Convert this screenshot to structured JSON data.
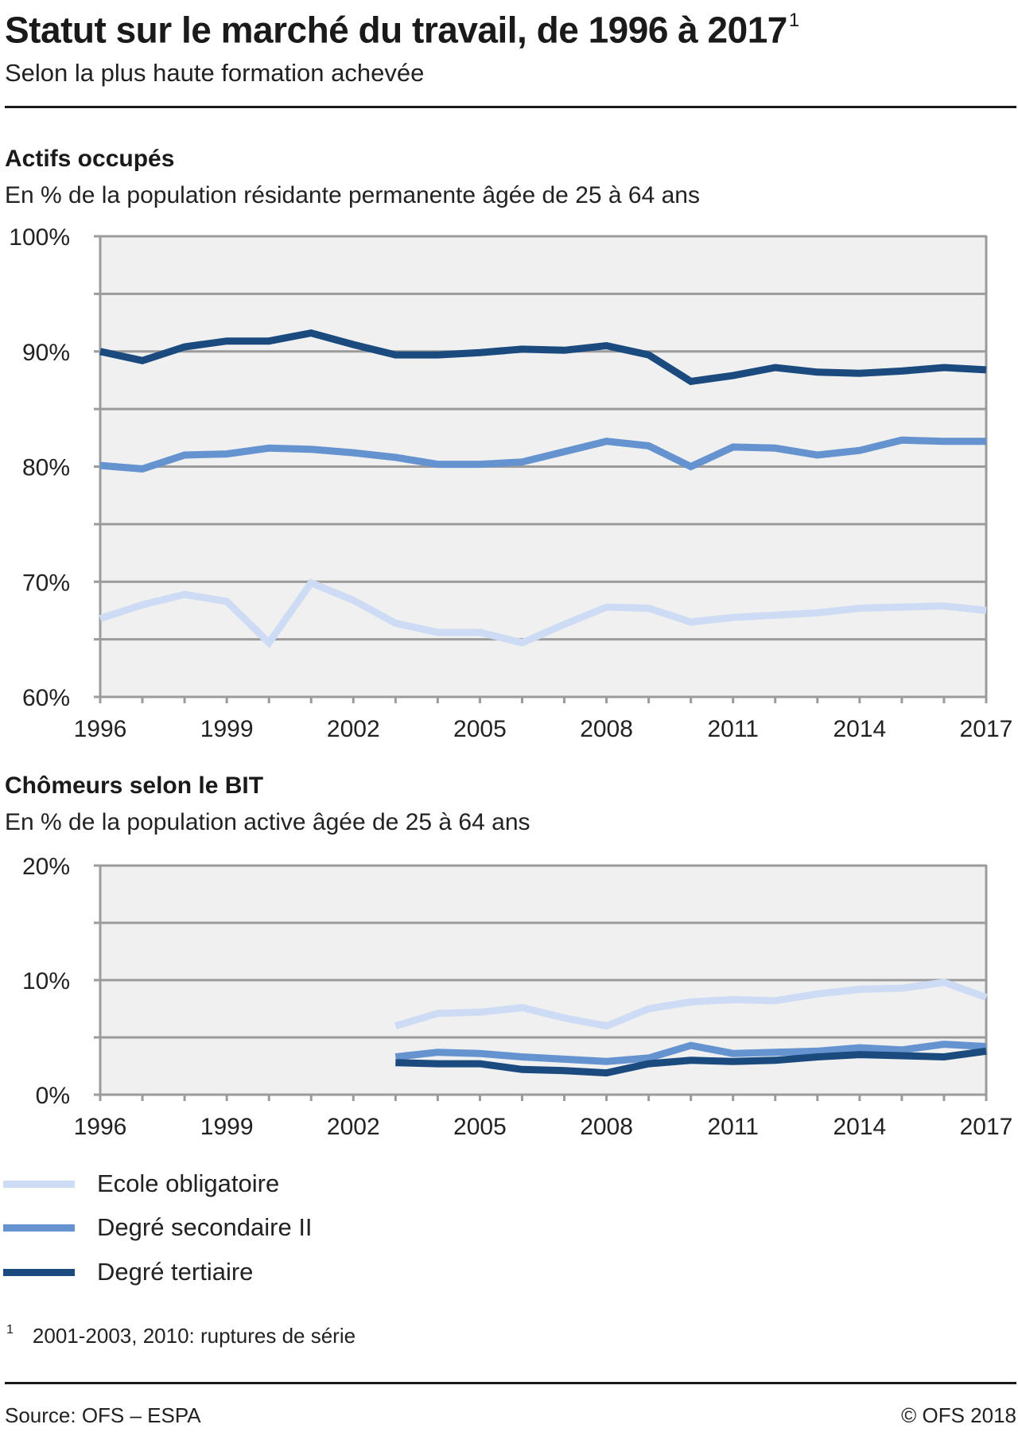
{
  "header": {
    "title": "Statut sur le marché du travail, de 1996 à 2017",
    "title_footnote_mark": "1",
    "subtitle": "Selon la plus haute formation achevée"
  },
  "colors": {
    "ecole": "#cddcf4",
    "secondaire": "#6593d0",
    "tertiaire": "#1a4a7e",
    "plot_bg": "#f0f0f0",
    "grid": "#9b9b9b"
  },
  "chart_data": [
    {
      "type": "line",
      "title": "Actifs occupés",
      "subtitle": "En % de la population résidante permanente âgée de 25 à 64 ans",
      "xlabel": "",
      "ylabel": "",
      "x": [
        1996,
        1997,
        1998,
        1999,
        2000,
        2001,
        2002,
        2003,
        2004,
        2005,
        2006,
        2007,
        2008,
        2009,
        2010,
        2011,
        2012,
        2013,
        2014,
        2015,
        2016,
        2017
      ],
      "x_tick_labels": [
        "1996",
        "1999",
        "2002",
        "2005",
        "2008",
        "2011",
        "2014",
        "2017"
      ],
      "ylim": [
        60,
        100
      ],
      "y_ticks": [
        60,
        65,
        70,
        75,
        80,
        85,
        90,
        95,
        100
      ],
      "y_tick_labels": [
        "60%",
        "",
        "70%",
        "",
        "80%",
        "",
        "90%",
        "",
        "100%"
      ],
      "grid": true,
      "series": [
        {
          "name": "Ecole obligatoire",
          "color_key": "ecole",
          "values": [
            66.8,
            68.0,
            68.9,
            68.3,
            64.7,
            69.9,
            68.4,
            66.4,
            65.6,
            65.6,
            64.7,
            66.3,
            67.8,
            67.7,
            66.5,
            66.9,
            67.1,
            67.3,
            67.7,
            67.8,
            67.9,
            67.5
          ]
        },
        {
          "name": "Degré secondaire II",
          "color_key": "secondaire",
          "values": [
            80.1,
            79.8,
            81.0,
            81.1,
            81.6,
            81.5,
            81.2,
            80.8,
            80.2,
            80.2,
            80.4,
            81.3,
            82.2,
            81.8,
            80.0,
            81.7,
            81.6,
            81.0,
            81.4,
            82.3,
            82.2,
            82.2
          ]
        },
        {
          "name": "Degré tertiaire",
          "color_key": "tertiaire",
          "values": [
            90.0,
            89.2,
            90.4,
            90.9,
            90.9,
            91.6,
            90.6,
            89.7,
            89.7,
            89.9,
            90.2,
            90.1,
            90.5,
            89.7,
            87.4,
            87.9,
            88.6,
            88.2,
            88.1,
            88.3,
            88.6,
            88.4
          ]
        }
      ]
    },
    {
      "type": "line",
      "title": "Chômeurs selon le BIT",
      "subtitle": "En % de la population active âgée de 25 à 64 ans",
      "xlabel": "",
      "ylabel": "",
      "x": [
        1996,
        1997,
        1998,
        1999,
        2000,
        2001,
        2002,
        2003,
        2004,
        2005,
        2006,
        2007,
        2008,
        2009,
        2010,
        2011,
        2012,
        2013,
        2014,
        2015,
        2016,
        2017
      ],
      "x_tick_labels": [
        "1996",
        "1999",
        "2002",
        "2005",
        "2008",
        "2011",
        "2014",
        "2017"
      ],
      "ylim": [
        0,
        20
      ],
      "y_ticks": [
        0,
        5,
        10,
        15,
        20
      ],
      "y_tick_labels": [
        "0%",
        "",
        "10%",
        "",
        "20%"
      ],
      "grid": true,
      "series": [
        {
          "name": "Ecole obligatoire",
          "color_key": "ecole",
          "values": [
            null,
            null,
            null,
            null,
            null,
            null,
            null,
            6.0,
            7.1,
            7.2,
            7.6,
            6.7,
            6.0,
            7.5,
            8.1,
            8.3,
            8.2,
            8.8,
            9.2,
            9.3,
            9.8,
            8.5
          ]
        },
        {
          "name": "Degré secondaire II",
          "color_key": "secondaire",
          "values": [
            null,
            null,
            null,
            null,
            null,
            null,
            null,
            3.3,
            3.7,
            3.6,
            3.3,
            3.1,
            2.9,
            3.2,
            4.3,
            3.6,
            3.7,
            3.8,
            4.1,
            3.9,
            4.4,
            4.2
          ]
        },
        {
          "name": "Degré tertiaire",
          "color_key": "tertiaire",
          "values": [
            null,
            null,
            null,
            null,
            null,
            null,
            null,
            2.8,
            2.7,
            2.7,
            2.2,
            2.1,
            1.9,
            2.7,
            3.0,
            2.9,
            3.0,
            3.3,
            3.5,
            3.4,
            3.3,
            3.8
          ]
        }
      ]
    }
  ],
  "legend": {
    "placement": "bottom-left",
    "items": [
      {
        "label": "Ecole obligatoire",
        "color_key": "ecole"
      },
      {
        "label": "Degré secondaire II",
        "color_key": "secondaire"
      },
      {
        "label": "Degré tertiaire",
        "color_key": "tertiaire"
      }
    ]
  },
  "footnote": {
    "mark": "1",
    "text": "2001-2003, 2010: ruptures de série"
  },
  "footer": {
    "source": "Source: OFS – ESPA",
    "copyright": "© OFS 2018"
  }
}
